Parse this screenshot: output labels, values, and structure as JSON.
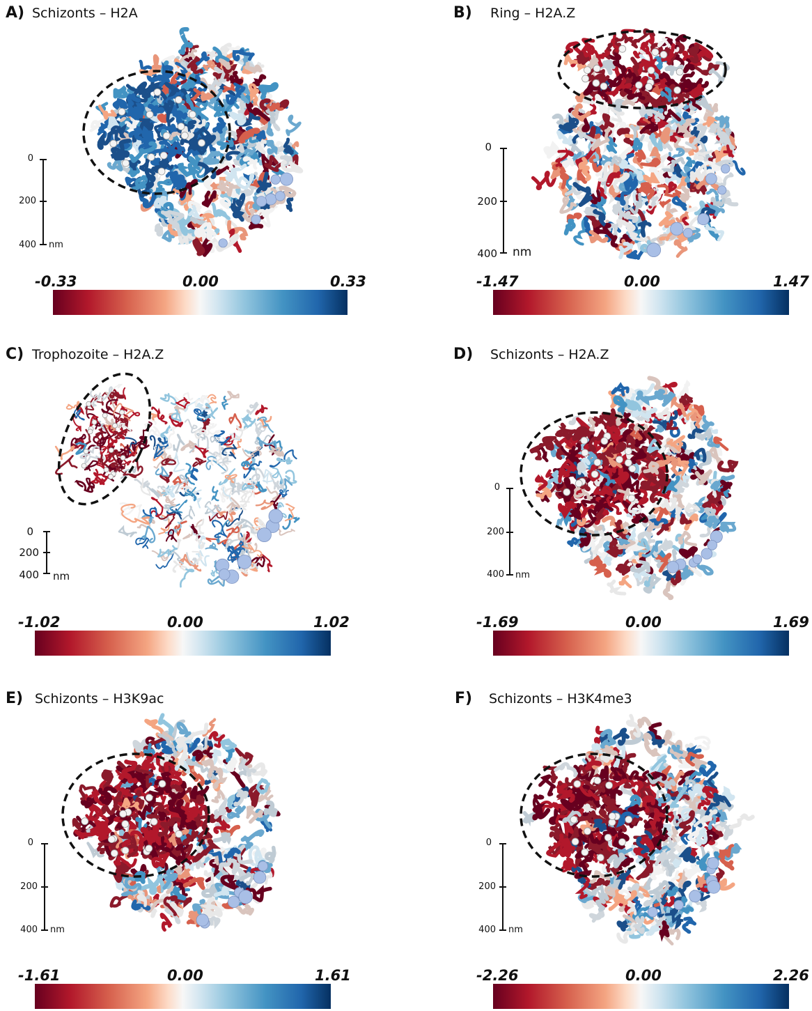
{
  "panels": [
    {
      "letter": "A)",
      "title": "Schizonts – H2A",
      "cbar_min": "-0.33",
      "cbar_mid": "0.00",
      "cbar_max": "0.33",
      "scale": {
        "t0": "0",
        "t1": "200",
        "t2": "400",
        "unit": "nm"
      },
      "hotspot": "blue"
    },
    {
      "letter": "B)",
      "title": "Ring – H2A.Z",
      "cbar_min": "-1.47",
      "cbar_mid": "0.00",
      "cbar_max": "1.47",
      "scale": {
        "t0": "0",
        "t1": "200",
        "t2": "400",
        "unit": "nm"
      },
      "hotspot": "red"
    },
    {
      "letter": "C)",
      "title": "Trophozoite – H2A.Z",
      "cbar_min": "-1.02",
      "cbar_mid": "0.00",
      "cbar_max": "1.02",
      "scale": {
        "t0": "0",
        "t1": "200",
        "t2": "400",
        "unit": "nm"
      },
      "hotspot": "red"
    },
    {
      "letter": "D)",
      "title": "Schizonts – H2A.Z",
      "cbar_min": "-1.69",
      "cbar_mid": "0.00",
      "cbar_max": "1.69",
      "scale": {
        "t0": "0",
        "t1": "200",
        "t2": "400",
        "unit": "nm"
      },
      "hotspot": "red"
    },
    {
      "letter": "E)",
      "title": "Schizonts – H3K9ac",
      "cbar_min": "-1.61",
      "cbar_mid": "0.00",
      "cbar_max": "1.61",
      "scale": {
        "t0": "0",
        "t1": "200",
        "t2": "400",
        "unit": "nm"
      },
      "hotspot": "red"
    },
    {
      "letter": "F)",
      "title": "Schizonts – H3K4me3",
      "cbar_min": "-2.26",
      "cbar_mid": "0.00",
      "cbar_max": "2.26",
      "scale": {
        "t0": "0",
        "t1": "200",
        "t2": "400",
        "unit": "nm"
      },
      "hotspot": "red"
    }
  ],
  "colormap": {
    "neg": "#67001f",
    "mid": "#f7f7f7",
    "pos": "#053061"
  }
}
